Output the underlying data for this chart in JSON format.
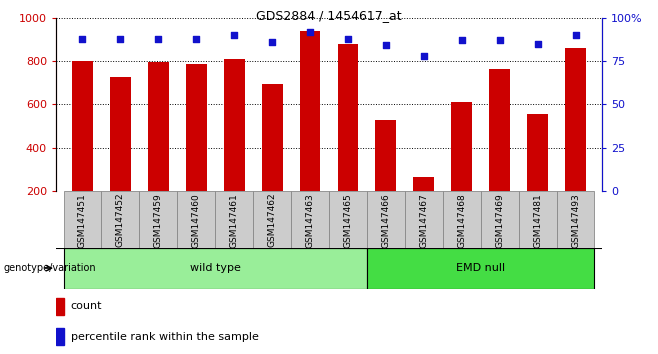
{
  "title": "GDS2884 / 1454617_at",
  "samples": [
    "GSM147451",
    "GSM147452",
    "GSM147459",
    "GSM147460",
    "GSM147461",
    "GSM147462",
    "GSM147463",
    "GSM147465",
    "GSM147466",
    "GSM147467",
    "GSM147468",
    "GSM147469",
    "GSM147481",
    "GSM147493"
  ],
  "counts": [
    800,
    725,
    795,
    785,
    810,
    695,
    940,
    880,
    530,
    265,
    610,
    765,
    555,
    860
  ],
  "percentile_ranks": [
    88,
    88,
    88,
    88,
    90,
    86,
    92,
    88,
    84,
    78,
    87,
    87,
    85,
    90
  ],
  "wild_type_count": 8,
  "emd_null_count": 6,
  "bar_color": "#cc0000",
  "marker_color": "#1111cc",
  "wild_type_color": "#99ee99",
  "emd_null_color": "#44dd44",
  "sample_cell_color": "#cccccc",
  "ylim_left": [
    200,
    1000
  ],
  "ylim_right": [
    0,
    100
  ],
  "yticks_left": [
    200,
    400,
    600,
    800,
    1000
  ],
  "yticks_right": [
    0,
    25,
    50,
    75,
    100
  ],
  "label_count": "count",
  "label_percentile": "percentile rank within the sample",
  "label_genotype": "genotype/variation"
}
